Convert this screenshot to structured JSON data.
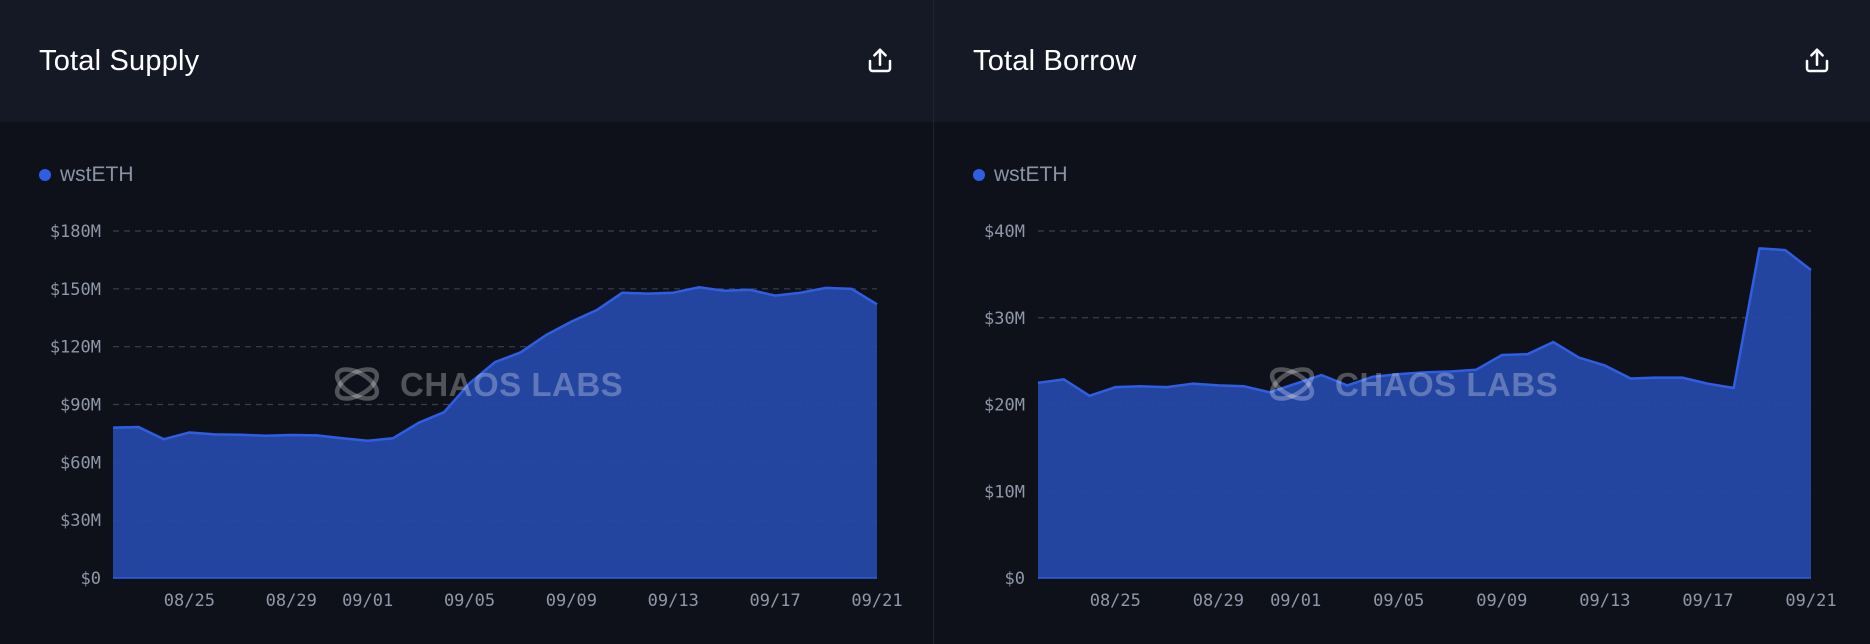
{
  "panels": [
    {
      "title": "Total Supply",
      "share_icon": "share-upload-icon",
      "legend": "wstETH",
      "watermark": "CHAOS LABS"
    },
    {
      "title": "Total Borrow",
      "share_icon": "share-upload-icon",
      "legend": "wstETH",
      "watermark": "CHAOS LABS"
    }
  ],
  "colors": {
    "area_fill": "#2549a8",
    "line": "#2f5ee3",
    "grid": "#3a3f4d",
    "legend_dot": "#2f5ee3"
  },
  "chart_data": [
    {
      "type": "area",
      "title": "",
      "series": [
        {
          "name": "wstETH",
          "values": [
            78,
            78.3,
            72,
            75.5,
            74.5,
            74.3,
            73.8,
            74.2,
            74,
            72.5,
            71.2,
            72.5,
            80.5,
            86,
            101,
            112,
            117,
            126,
            133,
            139,
            148,
            147.5,
            148,
            150.8,
            149,
            149.5,
            146.5,
            148,
            150.5,
            150,
            142
          ]
        }
      ],
      "x_start": "08/22",
      "x_tick_labels": [
        "08/25",
        "08/29",
        "09/01",
        "09/05",
        "09/09",
        "09/13",
        "09/17",
        "09/21"
      ],
      "x_tick_index": [
        3,
        7,
        10,
        14,
        18,
        22,
        26,
        30
      ],
      "y_ticks": [
        0,
        30,
        60,
        90,
        120,
        150,
        180
      ],
      "y_tick_labels": [
        "$0",
        "$30M",
        "$60M",
        "$90M",
        "$120M",
        "$150M",
        "$180M"
      ],
      "ylim": [
        0,
        180
      ],
      "grid": true,
      "legend_position": "top-left"
    },
    {
      "type": "area",
      "title": "",
      "series": [
        {
          "name": "wstETH",
          "values": [
            22.5,
            22.9,
            21,
            22,
            22.1,
            22,
            22.4,
            22.2,
            22.1,
            21.4,
            22.4,
            23.4,
            22.2,
            23.2,
            23.5,
            23.7,
            23.8,
            24,
            25.7,
            25.8,
            27.2,
            25.4,
            24.5,
            23,
            23.1,
            23.1,
            22.4,
            21.9,
            38,
            37.8,
            35.5
          ]
        }
      ],
      "x_start": "08/22",
      "x_tick_labels": [
        "08/25",
        "08/29",
        "09/01",
        "09/05",
        "09/09",
        "09/13",
        "09/17",
        "09/21"
      ],
      "x_tick_index": [
        3,
        7,
        10,
        14,
        18,
        22,
        26,
        30
      ],
      "y_ticks": [
        0,
        10,
        20,
        30,
        40
      ],
      "y_tick_labels": [
        "$0",
        "$10M",
        "$20M",
        "$30M",
        "$40M"
      ],
      "ylim": [
        0,
        40
      ],
      "grid": true,
      "legend_position": "top-left"
    }
  ]
}
